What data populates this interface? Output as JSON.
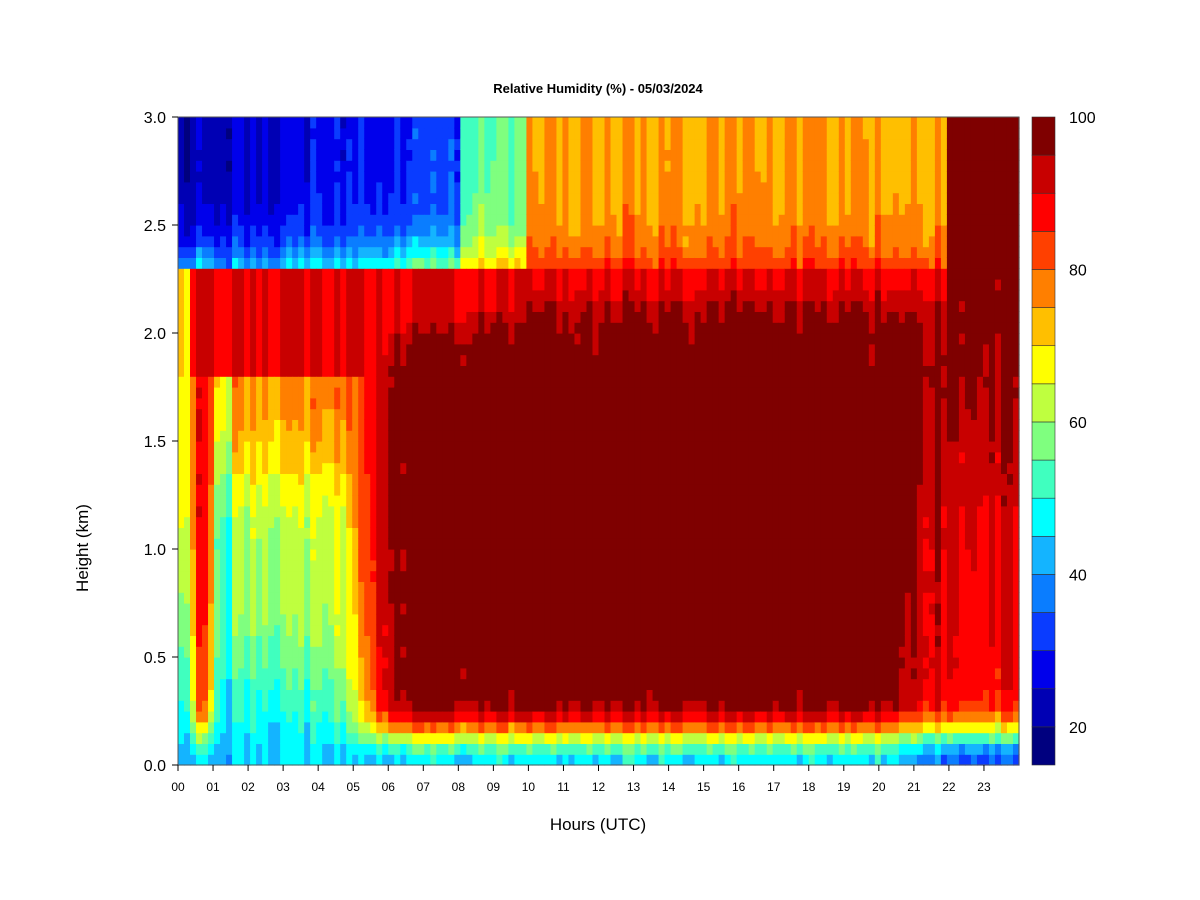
{
  "chart_data": {
    "type": "heatmap",
    "title": "Relative Humidity (%) - 05/03/2024",
    "xlabel": "Hours (UTC)",
    "ylabel": "Height (km)",
    "x_ticks": [
      "00",
      "01",
      "02",
      "03",
      "04",
      "05",
      "06",
      "07",
      "08",
      "09",
      "10",
      "11",
      "12",
      "13",
      "14",
      "15",
      "16",
      "17",
      "18",
      "19",
      "20",
      "21",
      "22",
      "23"
    ],
    "y_ticks": [
      "0.0",
      "0.5",
      "1.0",
      "1.5",
      "2.0",
      "2.5",
      "3.0"
    ],
    "xlim": [
      0,
      24
    ],
    "ylim": [
      0,
      3
    ],
    "colorbar": {
      "min": 15,
      "max": 100,
      "step": 5,
      "tick_labels": [
        "20",
        "40",
        "60",
        "80",
        "100"
      ],
      "colors": [
        "#00007f",
        "#0000b4",
        "#0000eb",
        "#0a3cff",
        "#0a7dff",
        "#14b4ff",
        "#00ffff",
        "#40ffbf",
        "#7fff7f",
        "#bfff3f",
        "#ffff00",
        "#ffbf00",
        "#ff7f00",
        "#ff4000",
        "#ff0000",
        "#c80000",
        "#7f0000"
      ]
    },
    "grid": false,
    "legend": "colorbar-right"
  }
}
